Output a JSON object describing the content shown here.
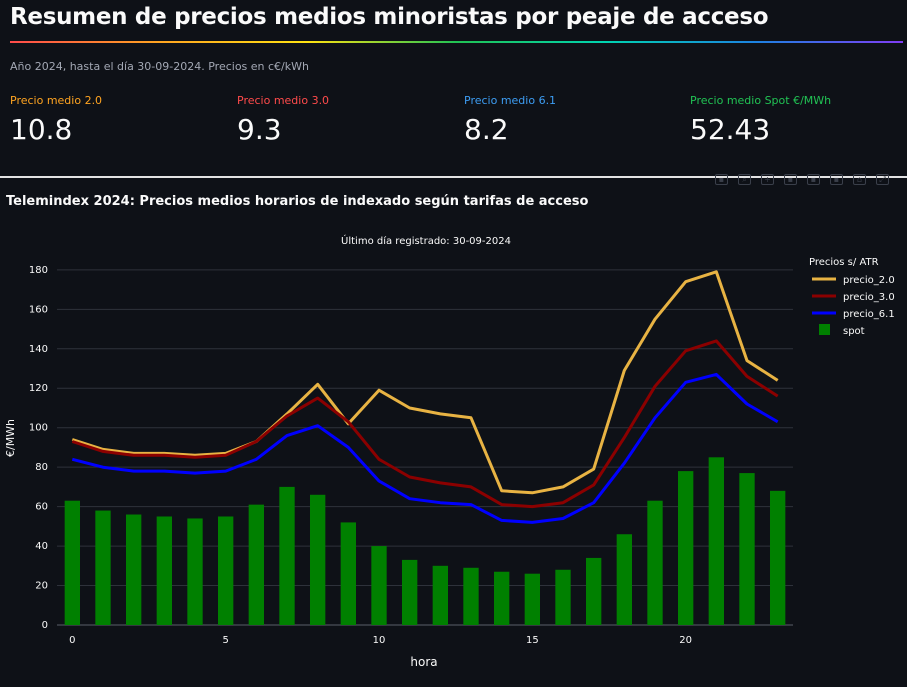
{
  "header": {
    "title": "Resumen de precios medios minoristas por peaje de acceso",
    "subtitle": "Año 2024, hasta el día 30-09-2024. Precios en c€/kWh"
  },
  "metrics": [
    {
      "label": "Precio medio 2.0",
      "value": "10.8",
      "color": "#ffa421"
    },
    {
      "label": "Precio medio 3.0",
      "value": "9.3",
      "color": "#ff4b4b"
    },
    {
      "label": "Precio medio 6.1",
      "value": "8.2",
      "color": "#3d9df3"
    },
    {
      "label": "Precio medio Spot €/MWh",
      "value": "52.43",
      "color": "#21c354"
    }
  ],
  "toolbar_icons": [
    "camera-icon",
    "zoom-icon",
    "pan-icon",
    "zoom-in-icon",
    "zoom-out-icon",
    "autoscale-icon",
    "reset-icon",
    "fullscreen-icon"
  ],
  "chart_data": {
    "type": "bar",
    "title": "Telemindex 2024: Precios medios horarios de indexado según tarifas de acceso",
    "subtitle": "Último día registrado: 30-09-2024",
    "xlabel": "hora",
    "ylabel": "€/MWh",
    "xlim": [
      -0.5,
      23.5
    ],
    "ylim": [
      0,
      185
    ],
    "xticks": [
      0,
      5,
      10,
      15,
      20
    ],
    "yticks": [
      0,
      20,
      40,
      60,
      80,
      100,
      120,
      140,
      160,
      180
    ],
    "grid": true,
    "legend_title": "Precios s/ ATR",
    "legend_position": "right",
    "x": [
      0,
      1,
      2,
      3,
      4,
      5,
      6,
      7,
      8,
      9,
      10,
      11,
      12,
      13,
      14,
      15,
      16,
      17,
      18,
      19,
      20,
      21,
      22,
      23
    ],
    "series": [
      {
        "name": "precio_2.0",
        "kind": "line",
        "color": "#e8b343",
        "values": [
          94,
          89,
          87,
          87,
          86,
          87,
          93,
          107,
          122,
          102,
          119,
          110,
          107,
          105,
          68,
          67,
          70,
          79,
          129,
          155,
          174,
          179,
          134,
          124
        ]
      },
      {
        "name": "precio_3.0",
        "kind": "line",
        "color": "#8b0000",
        "values": [
          93,
          88,
          86,
          86,
          85,
          86,
          93,
          106,
          115,
          103,
          84,
          75,
          72,
          70,
          61,
          60,
          62,
          71,
          95,
          121,
          139,
          144,
          126,
          116
        ]
      },
      {
        "name": "precio_6.1",
        "kind": "line",
        "color": "#0000ff",
        "values": [
          84,
          80,
          78,
          78,
          77,
          78,
          84,
          96,
          101,
          90,
          73,
          64,
          62,
          61,
          53,
          52,
          54,
          62,
          82,
          105,
          123,
          127,
          112,
          103
        ]
      },
      {
        "name": "spot",
        "kind": "bar",
        "color": "#008000",
        "values": [
          63,
          58,
          56,
          55,
          54,
          55,
          61,
          70,
          66,
          52,
          40,
          33,
          30,
          29,
          27,
          26,
          28,
          34,
          46,
          63,
          78,
          85,
          77,
          68
        ]
      }
    ]
  }
}
